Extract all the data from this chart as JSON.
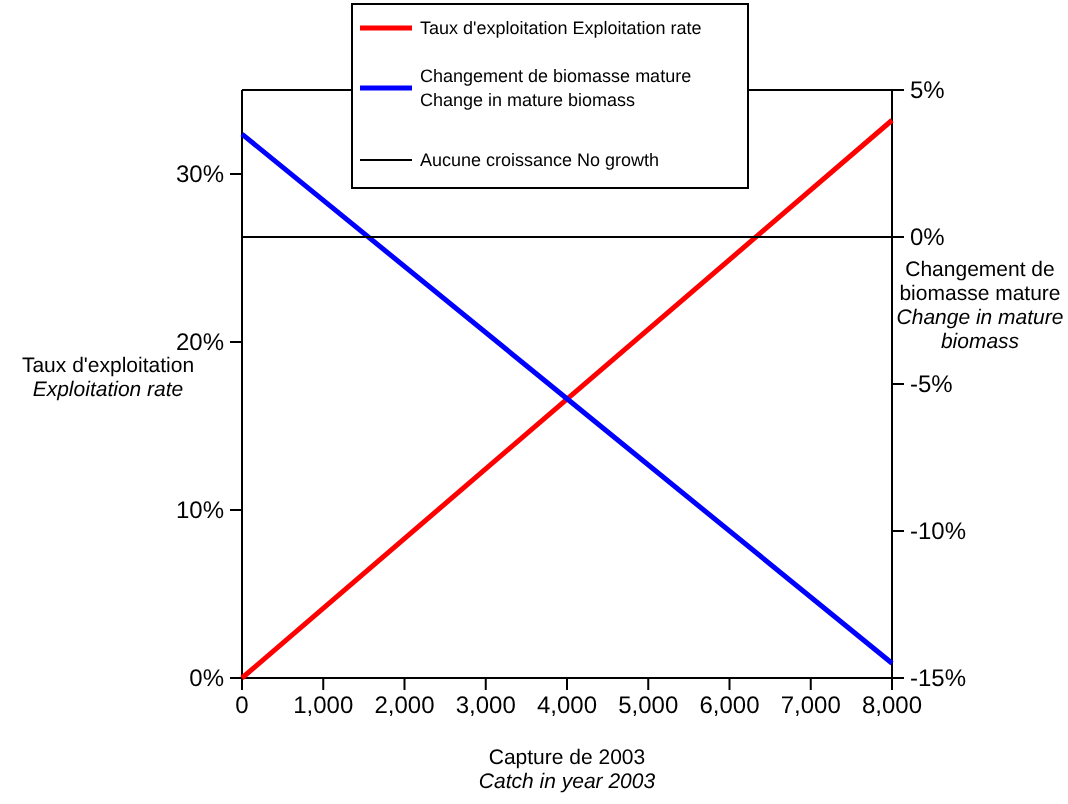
{
  "chart_data": {
    "type": "line",
    "xlabel": "Capture de 2003\nCatch in year 2003",
    "ylabel": "Taux d'exploitation\nExploitation rate",
    "y2label": "Changement de\nbiomasse mature\nChange in mature\nbiomass",
    "xlim": [
      0,
      8000
    ],
    "xticks": [
      {
        "value": 0,
        "label": "0"
      },
      {
        "value": 1000,
        "label": "1,000"
      },
      {
        "value": 2000,
        "label": "2,000"
      },
      {
        "value": 3000,
        "label": "3,000"
      },
      {
        "value": 4000,
        "label": "4,000"
      },
      {
        "value": 5000,
        "label": "5,000"
      },
      {
        "value": 6000,
        "label": "6,000"
      },
      {
        "value": 7000,
        "label": "7,000"
      },
      {
        "value": 8000,
        "label": "8,000"
      }
    ],
    "ylim": [
      0,
      35
    ],
    "yticks": [
      {
        "value": 0,
        "label": "0%"
      },
      {
        "value": 10,
        "label": "10%"
      },
      {
        "value": 20,
        "label": "20%"
      },
      {
        "value": 30,
        "label": "30%"
      }
    ],
    "y2lim": [
      -15,
      5
    ],
    "y2ticks": [
      {
        "value": -15,
        "label": "-15%"
      },
      {
        "value": -10,
        "label": "-10%"
      },
      {
        "value": -5,
        "label": "-5%"
      },
      {
        "value": 0,
        "label": "0%"
      },
      {
        "value": 5,
        "label": "5%"
      }
    ],
    "legend": "top",
    "grid": false,
    "series": [
      {
        "name": "Taux d'exploitation   Exploitation rate",
        "color": "#ff0000",
        "x": [
          0,
          4000,
          8000
        ],
        "values": [
          0,
          16.6,
          33.2
        ]
      },
      {
        "name": "Changement de biomasse mature\nChange in mature biomass",
        "color": "#0000ff",
        "axis": "y2",
        "x": [
          0,
          4000,
          8000
        ],
        "values": [
          3.5,
          -5.5,
          -14.5
        ]
      },
      {
        "name": "Aucune croissance    No growth",
        "color": "#000000",
        "axis": "y2",
        "x": [
          0,
          8000
        ],
        "values": [
          0,
          0
        ]
      }
    ]
  }
}
